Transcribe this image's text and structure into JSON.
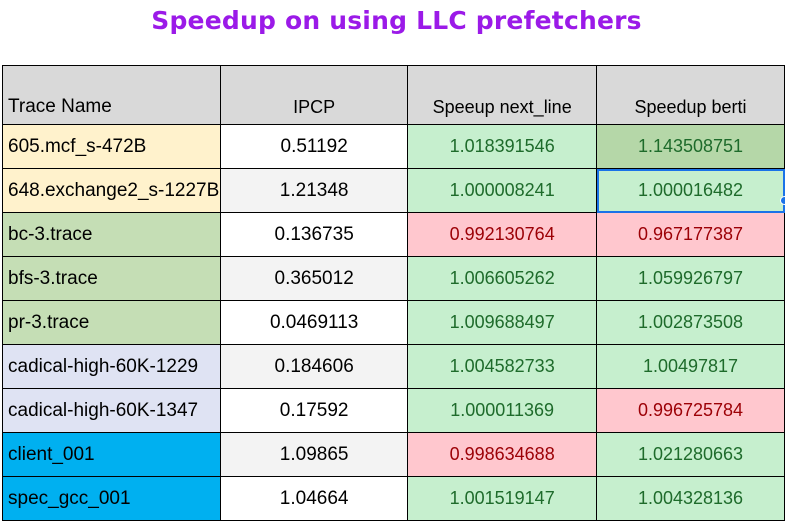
{
  "title": "Speedup on using LLC prefetchers",
  "columns": [
    "Trace Name",
    "IPCP",
    "Speeup next_line",
    "Speedup berti"
  ],
  "rows": [
    {
      "name": "605.mcf_s-472B",
      "ipcp": "0.51192",
      "next_line": "1.018391546",
      "berti": "1.143508751",
      "name_color": "#fff2cc",
      "ipcp_color": "#ffffff",
      "next_line_status": "green",
      "berti_status": "green-dark"
    },
    {
      "name": "648.exchange2_s-1227B",
      "ipcp": "1.21348",
      "next_line": "1.000008241",
      "berti": "1.000016482",
      "name_color": "#fff2cc",
      "ipcp_color": "#f3f3f3",
      "next_line_status": "green",
      "berti_status": "green"
    },
    {
      "name": "bc-3.trace",
      "ipcp": "0.136735",
      "next_line": "0.992130764",
      "berti": "0.967177387",
      "name_color": "#c5deb5",
      "ipcp_color": "#ffffff",
      "next_line_status": "red",
      "berti_status": "red"
    },
    {
      "name": "bfs-3.trace",
      "ipcp": "0.365012",
      "next_line": "1.006605262",
      "berti": "1.059926797",
      "name_color": "#c5deb5",
      "ipcp_color": "#f3f3f3",
      "next_line_status": "green",
      "berti_status": "green"
    },
    {
      "name": "pr-3.trace",
      "ipcp": "0.0469113",
      "next_line": "1.009688497",
      "berti": "1.002873508",
      "name_color": "#c5deb5",
      "ipcp_color": "#ffffff",
      "next_line_status": "green",
      "berti_status": "green"
    },
    {
      "name": "cadical-high-60K-1229",
      "ipcp": "0.184606",
      "next_line": "1.004582733",
      "berti": "1.00497817",
      "name_color": "#dfe3f3",
      "ipcp_color": "#f3f3f3",
      "next_line_status": "green",
      "berti_status": "green"
    },
    {
      "name": "cadical-high-60K-1347",
      "ipcp": "0.17592",
      "next_line": "1.000011369",
      "berti": "0.996725784",
      "name_color": "#dfe3f3",
      "ipcp_color": "#ffffff",
      "next_line_status": "green",
      "berti_status": "red"
    },
    {
      "name": "client_001",
      "ipcp": "1.09865",
      "next_line": "0.998634688",
      "berti": "1.021280663",
      "name_color": "#00b0f0",
      "ipcp_color": "#f3f3f3",
      "next_line_status": "red",
      "berti_status": "green"
    },
    {
      "name": "spec_gcc_001",
      "ipcp": "1.04664",
      "next_line": "1.001519147",
      "berti": "1.004328136",
      "name_color": "#00b0f0",
      "ipcp_color": "#ffffff",
      "next_line_status": "green",
      "berti_status": "green"
    }
  ]
}
